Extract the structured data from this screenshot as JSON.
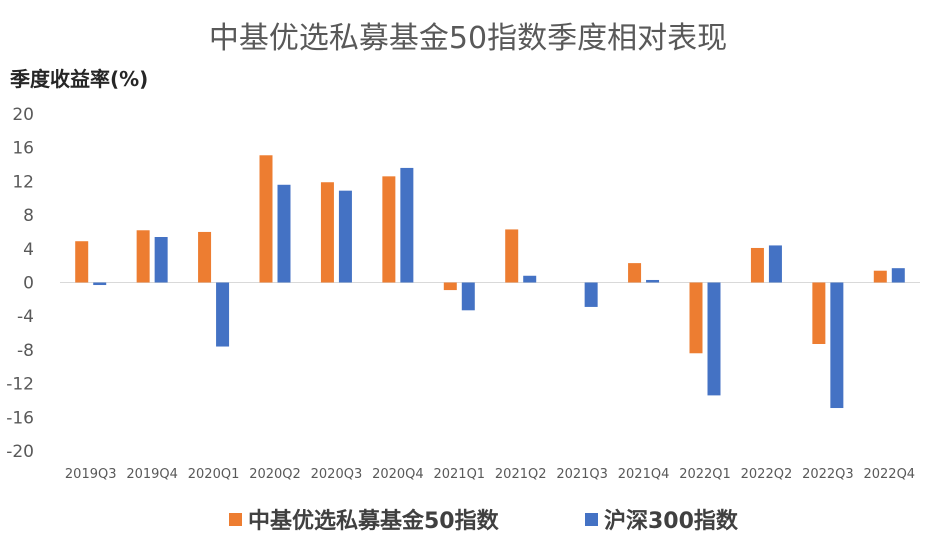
{
  "chart_data": {
    "type": "bar",
    "title": "中基优选私募基金50指数季度相对表现",
    "ylabel": "季度收益率(%)",
    "xlabel": "",
    "ylim": [
      -20,
      20
    ],
    "yticks": [
      20,
      16,
      12,
      8,
      4,
      0,
      -4,
      -8,
      -12,
      -16,
      -20
    ],
    "grid": false,
    "legend_position": "bottom",
    "categories": [
      "2019Q3",
      "2019Q4",
      "2020Q1",
      "2020Q2",
      "2020Q3",
      "2020Q4",
      "2021Q1",
      "2021Q2",
      "2021Q3",
      "2021Q4",
      "2022Q1",
      "2022Q2",
      "2022Q3",
      "2022Q4"
    ],
    "series": [
      {
        "name": "中基优选私募基金50指数",
        "color": "#ED7D31",
        "values": [
          4.9,
          6.2,
          6.0,
          15.1,
          11.9,
          12.6,
          -0.9,
          6.3,
          0.0,
          2.3,
          -8.4,
          4.1,
          -7.3,
          1.4
        ]
      },
      {
        "name": "沪深300指数",
        "color": "#4472C4",
        "values": [
          -0.3,
          5.4,
          -7.6,
          11.6,
          10.9,
          13.6,
          -3.3,
          0.8,
          -2.9,
          0.3,
          -13.4,
          4.4,
          -14.9,
          1.7
        ]
      }
    ]
  }
}
